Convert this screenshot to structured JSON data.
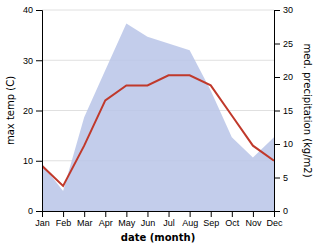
{
  "chart_data": {
    "type": "line",
    "xlabel": "date (month)",
    "ylabel": "max temp (C)",
    "y2label": "med. precipitation (kg/m2)",
    "categories": [
      "Jan",
      "Feb",
      "Mar",
      "Apr",
      "May",
      "Jun",
      "Jul",
      "Aug",
      "Sep",
      "Oct",
      "Nov",
      "Dec"
    ],
    "series": [
      {
        "type": "area",
        "axis": "y2",
        "color": "#b8c4e8",
        "values": [
          7,
          3,
          14,
          21,
          28,
          26,
          25,
          24,
          18,
          11,
          8,
          11
        ]
      },
      {
        "type": "line",
        "color": "#c0392b",
        "values": [
          9,
          5,
          13,
          22,
          25,
          25,
          27,
          27,
          25,
          19,
          13,
          10
        ]
      }
    ],
    "ylim": [
      0,
      40
    ],
    "yticks": [
      0,
      10,
      20,
      30,
      40
    ],
    "y2lim": [
      0,
      30
    ],
    "y2ticks": [
      0,
      5,
      10,
      15,
      20,
      25,
      30
    ],
    "grid": true
  }
}
